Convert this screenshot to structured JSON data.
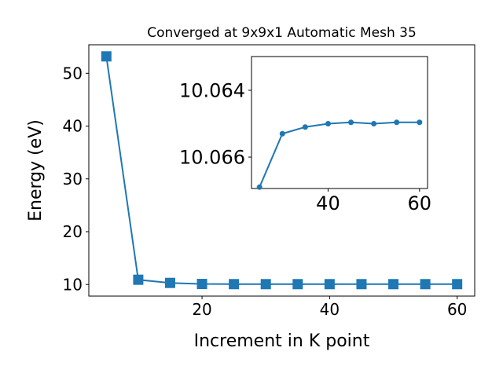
{
  "chart_data": [
    {
      "type": "line",
      "title": "Converged at 9x9x1 Automatic Mesh 35",
      "xlabel": "Increment in K point",
      "ylabel": "Energy (eV)",
      "x": [
        5,
        10,
        15,
        20,
        25,
        30,
        35,
        40,
        45,
        50,
        55,
        60
      ],
      "series": [
        {
          "color": "#1f77b4",
          "marker": "square",
          "values": [
            53.2,
            10.9,
            10.3,
            10.1,
            10.0669,
            10.0653,
            10.0651,
            10.065,
            10.065,
            10.065,
            10.065,
            10.065
          ]
        }
      ],
      "xlim": [
        2.25,
        62.75
      ],
      "ylim": [
        7.8,
        55.4
      ],
      "xticks": [
        20,
        40,
        60
      ],
      "yticks": [
        10,
        20,
        30,
        40,
        50
      ]
    },
    {
      "type": "line",
      "x": [
        25,
        30,
        35,
        40,
        45,
        50,
        55,
        60
      ],
      "series": [
        {
          "color": "#1f77b4",
          "marker": "circle",
          "values": [
            10.0669,
            10.0653,
            10.0651,
            10.065,
            10.06496,
            10.065,
            10.06496,
            10.06496
          ]
        }
      ],
      "xlim": [
        23.25,
        61.75
      ],
      "ylim": [
        10.06694,
        10.06299
      ],
      "xticks": [
        40,
        60
      ],
      "yticks": [
        10.064,
        10.066
      ]
    }
  ]
}
